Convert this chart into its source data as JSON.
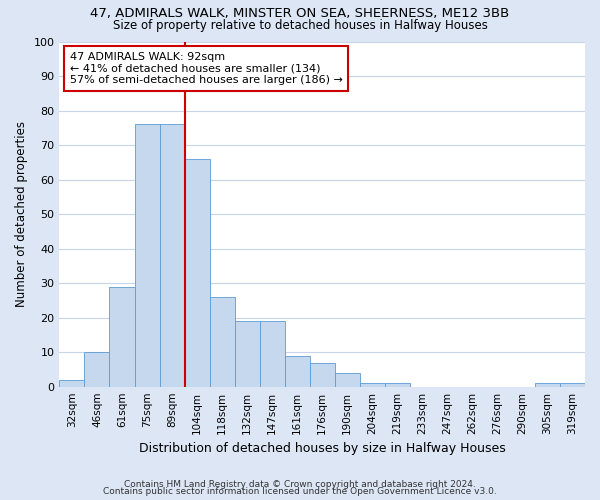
{
  "title1": "47, ADMIRALS WALK, MINSTER ON SEA, SHEERNESS, ME12 3BB",
  "title2": "Size of property relative to detached houses in Halfway Houses",
  "xlabel": "Distribution of detached houses by size in Halfway Houses",
  "ylabel": "Number of detached properties",
  "categories": [
    "32sqm",
    "46sqm",
    "61sqm",
    "75sqm",
    "89sqm",
    "104sqm",
    "118sqm",
    "132sqm",
    "147sqm",
    "161sqm",
    "176sqm",
    "190sqm",
    "204sqm",
    "219sqm",
    "233sqm",
    "247sqm",
    "262sqm",
    "276sqm",
    "290sqm",
    "305sqm",
    "319sqm"
  ],
  "values": [
    2,
    10,
    29,
    76,
    76,
    66,
    26,
    19,
    19,
    9,
    7,
    4,
    1,
    1,
    0,
    0,
    0,
    0,
    0,
    1,
    1
  ],
  "bar_color": "#c5d8ed",
  "bar_edgecolor": "#5b9bd5",
  "vline_color": "#cc0000",
  "vline_x_index": 4.5,
  "annotation_text": "47 ADMIRALS WALK: 92sqm\n← 41% of detached houses are smaller (134)\n57% of semi-detached houses are larger (186) →",
  "annotation_box_facecolor": "#ffffff",
  "annotation_box_edgecolor": "#cc0000",
  "ylim": [
    0,
    100
  ],
  "yticks": [
    0,
    10,
    20,
    30,
    40,
    50,
    60,
    70,
    80,
    90,
    100
  ],
  "footnote1": "Contains HM Land Registry data © Crown copyright and database right 2024.",
  "footnote2": "Contains public sector information licensed under the Open Government Licence v3.0.",
  "fig_bg_color": "#dce6f5",
  "plot_bg_color": "#ffffff",
  "grid_color": "#c8d4e8"
}
